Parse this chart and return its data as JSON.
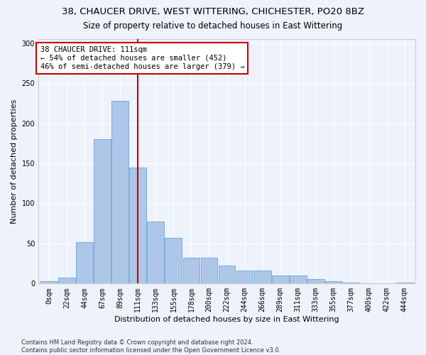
{
  "title1": "38, CHAUCER DRIVE, WEST WITTERING, CHICHESTER, PO20 8BZ",
  "title2": "Size of property relative to detached houses in East Wittering",
  "xlabel": "Distribution of detached houses by size in East Wittering",
  "ylabel": "Number of detached properties",
  "footer": "Contains HM Land Registry data © Crown copyright and database right 2024.\nContains public sector information licensed under the Open Government Licence v3.0.",
  "bin_labels": [
    "0sqm",
    "22sqm",
    "44sqm",
    "67sqm",
    "89sqm",
    "111sqm",
    "133sqm",
    "155sqm",
    "178sqm",
    "200sqm",
    "222sqm",
    "244sqm",
    "266sqm",
    "289sqm",
    "311sqm",
    "333sqm",
    "355sqm",
    "377sqm",
    "400sqm",
    "422sqm",
    "444sqm"
  ],
  "bar_values": [
    3,
    7,
    52,
    180,
    228,
    145,
    77,
    57,
    32,
    32,
    22,
    16,
    16,
    10,
    10,
    6,
    3,
    1,
    0,
    0,
    1
  ],
  "bar_color": "#aec6e8",
  "bar_edgecolor": "#5b9bd5",
  "vline_index": 5,
  "vline_color": "#cc0000",
  "annotation_line1": "38 CHAUCER DRIVE: 111sqm",
  "annotation_line2": "← 54% of detached houses are smaller (452)",
  "annotation_line3": "46% of semi-detached houses are larger (379) →",
  "annotation_box_facecolor": "#ffffff",
  "annotation_box_edgecolor": "#cc0000",
  "ylim": [
    0,
    305
  ],
  "yticks": [
    0,
    50,
    100,
    150,
    200,
    250,
    300
  ],
  "background_color": "#edf2fb",
  "grid_color": "#ffffff",
  "title1_fontsize": 9.5,
  "title2_fontsize": 8.5,
  "xlabel_fontsize": 8,
  "ylabel_fontsize": 8,
  "tick_fontsize": 7,
  "annotation_fontsize": 7.5,
  "footer_fontsize": 6
}
